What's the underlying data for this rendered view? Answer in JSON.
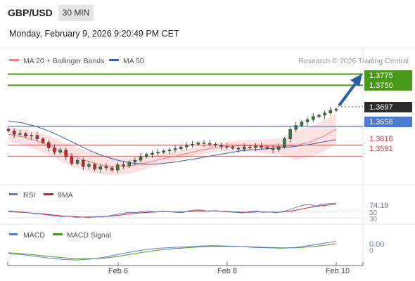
{
  "header": {
    "pair": "GBP/USD",
    "timeframe": "30 MIN",
    "datetime": "Monday, February 9, 2026 9:20:49 PM CET"
  },
  "colors": {
    "resistance": "#4a9a1a",
    "pivot": "#4a7ad6",
    "support": "#e06060",
    "price": "#333333",
    "ma20": "#f08080",
    "ma50": "#3a5ea8",
    "bollinger_fill": "#fbdcdc",
    "arrow": "#2a5ea8",
    "rsi": "#5b7bd5",
    "rsi_ma": "#d62020",
    "macd": "#5b7bd5",
    "macd_signal": "#4a9a1a"
  },
  "chart_data": [
    {
      "type": "candlestick",
      "title": "",
      "legend": [
        {
          "name": "MA 20 + Bollinger Bands",
          "color": "#f08080"
        },
        {
          "name": "MA 50",
          "color": "#3a5ea8"
        }
      ],
      "watermark": "Research © 2026 Trading Central",
      "x_ticks": [
        "Feb 6",
        "Feb 8",
        "Feb 10"
      ],
      "ylim": [
        1.3535,
        1.379
      ],
      "levels": [
        {
          "value": "1.3775",
          "kind": "resistance"
        },
        {
          "value": "1.3750",
          "kind": "resistance"
        },
        {
          "value": "1.3697",
          "kind": "price"
        },
        {
          "value": "1.3658",
          "kind": "pivot"
        },
        {
          "value": "1.3616",
          "kind": "support"
        },
        {
          "value": "1.3591",
          "kind": "support"
        }
      ],
      "close_series": [
        1.3648,
        1.364,
        1.3642,
        1.3636,
        1.3638,
        1.363,
        1.3622,
        1.361,
        1.36,
        1.3605,
        1.359,
        1.3575,
        1.3582,
        1.3568,
        1.3573,
        1.3562,
        1.3568,
        1.3565,
        1.356,
        1.3572,
        1.3569,
        1.3578,
        1.3582,
        1.359,
        1.3595,
        1.3598,
        1.36,
        1.3603,
        1.3605,
        1.3608,
        1.3612,
        1.3616,
        1.3618,
        1.3621,
        1.362,
        1.3618,
        1.3616,
        1.3613,
        1.3612,
        1.3609,
        1.3607,
        1.3612,
        1.361,
        1.3614,
        1.3611,
        1.3609,
        1.3606,
        1.3612,
        1.363,
        1.3651,
        1.366,
        1.3668,
        1.3673,
        1.368,
        1.3683,
        1.3688,
        1.3694,
        1.3697
      ],
      "ma20_series": [
        1.364,
        1.3635,
        1.3626,
        1.3615,
        1.36,
        1.3588,
        1.3578,
        1.357,
        1.3568,
        1.357,
        1.3576,
        1.3583,
        1.359,
        1.3597,
        1.3604,
        1.361,
        1.3613,
        1.3615,
        1.3614,
        1.3613,
        1.3613,
        1.3615,
        1.3622,
        1.3635,
        1.3652
      ],
      "ma50_series": [
        1.367,
        1.3666,
        1.3658,
        1.3647,
        1.3633,
        1.3618,
        1.3603,
        1.3591,
        1.3582,
        1.3576,
        1.3573,
        1.3574,
        1.3577,
        1.3582,
        1.3587,
        1.3593,
        1.3598,
        1.3603,
        1.3606,
        1.3608,
        1.361,
        1.3613,
        1.3617,
        1.3623,
        1.3628
      ]
    },
    {
      "type": "line",
      "legend": [
        {
          "name": "RSI",
          "color": "#5b7bd5"
        },
        {
          "name": "9MA",
          "color": "#d62020"
        }
      ],
      "ylim": [
        25,
        80
      ],
      "last_value": "74.19",
      "ticks": [
        "50",
        "30"
      ],
      "rsi_series": [
        52,
        50,
        49,
        47,
        44,
        43,
        40,
        38,
        36,
        38,
        34,
        35,
        33,
        36,
        35,
        38,
        42,
        45,
        48,
        47,
        50,
        52,
        49,
        51,
        50,
        48,
        47,
        52,
        55,
        54,
        51,
        53,
        50,
        49,
        48,
        46,
        50,
        52,
        48,
        49,
        47,
        50,
        55,
        62,
        68,
        70,
        66,
        71,
        73,
        74
      ],
      "rsi_ma_series": [
        50,
        49,
        48,
        47,
        45,
        44,
        42,
        40,
        38,
        37,
        36,
        35,
        35,
        35,
        36,
        37,
        39,
        41,
        44,
        45,
        47,
        48,
        49,
        50,
        50,
        49,
        49,
        50,
        52,
        52,
        52,
        52,
        51,
        50,
        49,
        48,
        48,
        49,
        49,
        49,
        48,
        49,
        51,
        54,
        58,
        62,
        65,
        67,
        69,
        71
      ]
    },
    {
      "type": "line",
      "legend": [
        {
          "name": "MACD",
          "color": "#5b7bd5"
        },
        {
          "name": "MACD Signal",
          "color": "#4a9a1a"
        }
      ],
      "last_value": "0.00",
      "ticks": [
        "0"
      ],
      "macd_series": [
        -0.0008,
        -0.001,
        -0.0014,
        -0.0018,
        -0.0021,
        -0.0022,
        -0.002,
        -0.0016,
        -0.001,
        -0.0004,
        0.0001,
        0.0004,
        0.0006,
        0.0007,
        0.0009,
        0.001,
        0.0009,
        0.0008,
        0.0006,
        0.0005,
        0.0004,
        0.0006,
        0.001,
        0.0015,
        0.0019
      ],
      "signal_series": [
        -0.0006,
        -0.0008,
        -0.0011,
        -0.0014,
        -0.0017,
        -0.0019,
        -0.0019,
        -0.0018,
        -0.0014,
        -0.0009,
        -0.0004,
        0.0,
        0.0003,
        0.0005,
        0.0007,
        0.0008,
        0.0008,
        0.0008,
        0.0007,
        0.0006,
        0.0005,
        0.0005,
        0.0007,
        0.001,
        0.0014
      ]
    }
  ]
}
